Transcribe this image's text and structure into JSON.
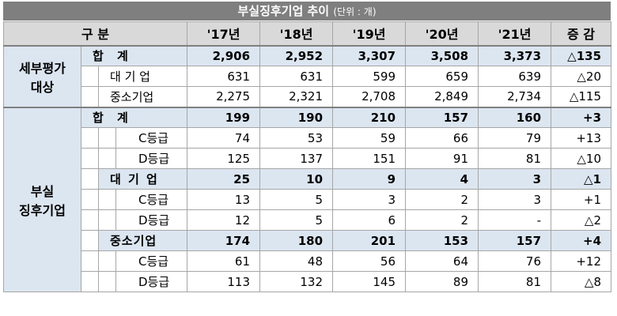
{
  "title": {
    "main": "부실징후기업 추이",
    "unit": "(단위 : 개)"
  },
  "headers": {
    "category": "구 분",
    "years": [
      "'17년",
      "'18년",
      "'19년",
      "'20년",
      "'21년"
    ],
    "change": "증 감"
  },
  "section1": {
    "label_line1": "세부평가",
    "label_line2": "대상",
    "rows": [
      {
        "label": "합    계",
        "values": [
          "2,906",
          "2,952",
          "3,307",
          "3,508",
          "3,373"
        ],
        "change": "△135"
      },
      {
        "label": "대 기 업",
        "values": [
          "631",
          "631",
          "599",
          "659",
          "639"
        ],
        "change": "△20"
      },
      {
        "label": "중소기업",
        "values": [
          "2,275",
          "2,321",
          "2,708",
          "2,849",
          "2,734"
        ],
        "change": "△115"
      }
    ]
  },
  "section2": {
    "label_line1": "부실",
    "label_line2": "징후기업",
    "total": {
      "label": "합    계",
      "values": [
        "199",
        "190",
        "210",
        "157",
        "160"
      ],
      "change": "+3"
    },
    "total_c": {
      "label": "C등급",
      "values": [
        "74",
        "53",
        "59",
        "66",
        "79"
      ],
      "change": "+13"
    },
    "total_d": {
      "label": "D등급",
      "values": [
        "125",
        "137",
        "151",
        "91",
        "81"
      ],
      "change": "△10"
    },
    "large": {
      "label": "대 기 업",
      "values": [
        "25",
        "10",
        "9",
        "4",
        "3"
      ],
      "change": "△1"
    },
    "large_c": {
      "label": "C등급",
      "values": [
        "13",
        "5",
        "3",
        "2",
        "3"
      ],
      "change": "+1"
    },
    "large_d": {
      "label": "D등급",
      "values": [
        "12",
        "5",
        "6",
        "2",
        "-"
      ],
      "change": "△2"
    },
    "sme": {
      "label": "중소기업",
      "values": [
        "174",
        "180",
        "201",
        "153",
        "157"
      ],
      "change": "+4"
    },
    "sme_c": {
      "label": "C등급",
      "values": [
        "61",
        "48",
        "56",
        "64",
        "76"
      ],
      "change": "+12"
    },
    "sme_d": {
      "label": "D등급",
      "values": [
        "113",
        "132",
        "145",
        "89",
        "81"
      ],
      "change": "△8"
    }
  }
}
